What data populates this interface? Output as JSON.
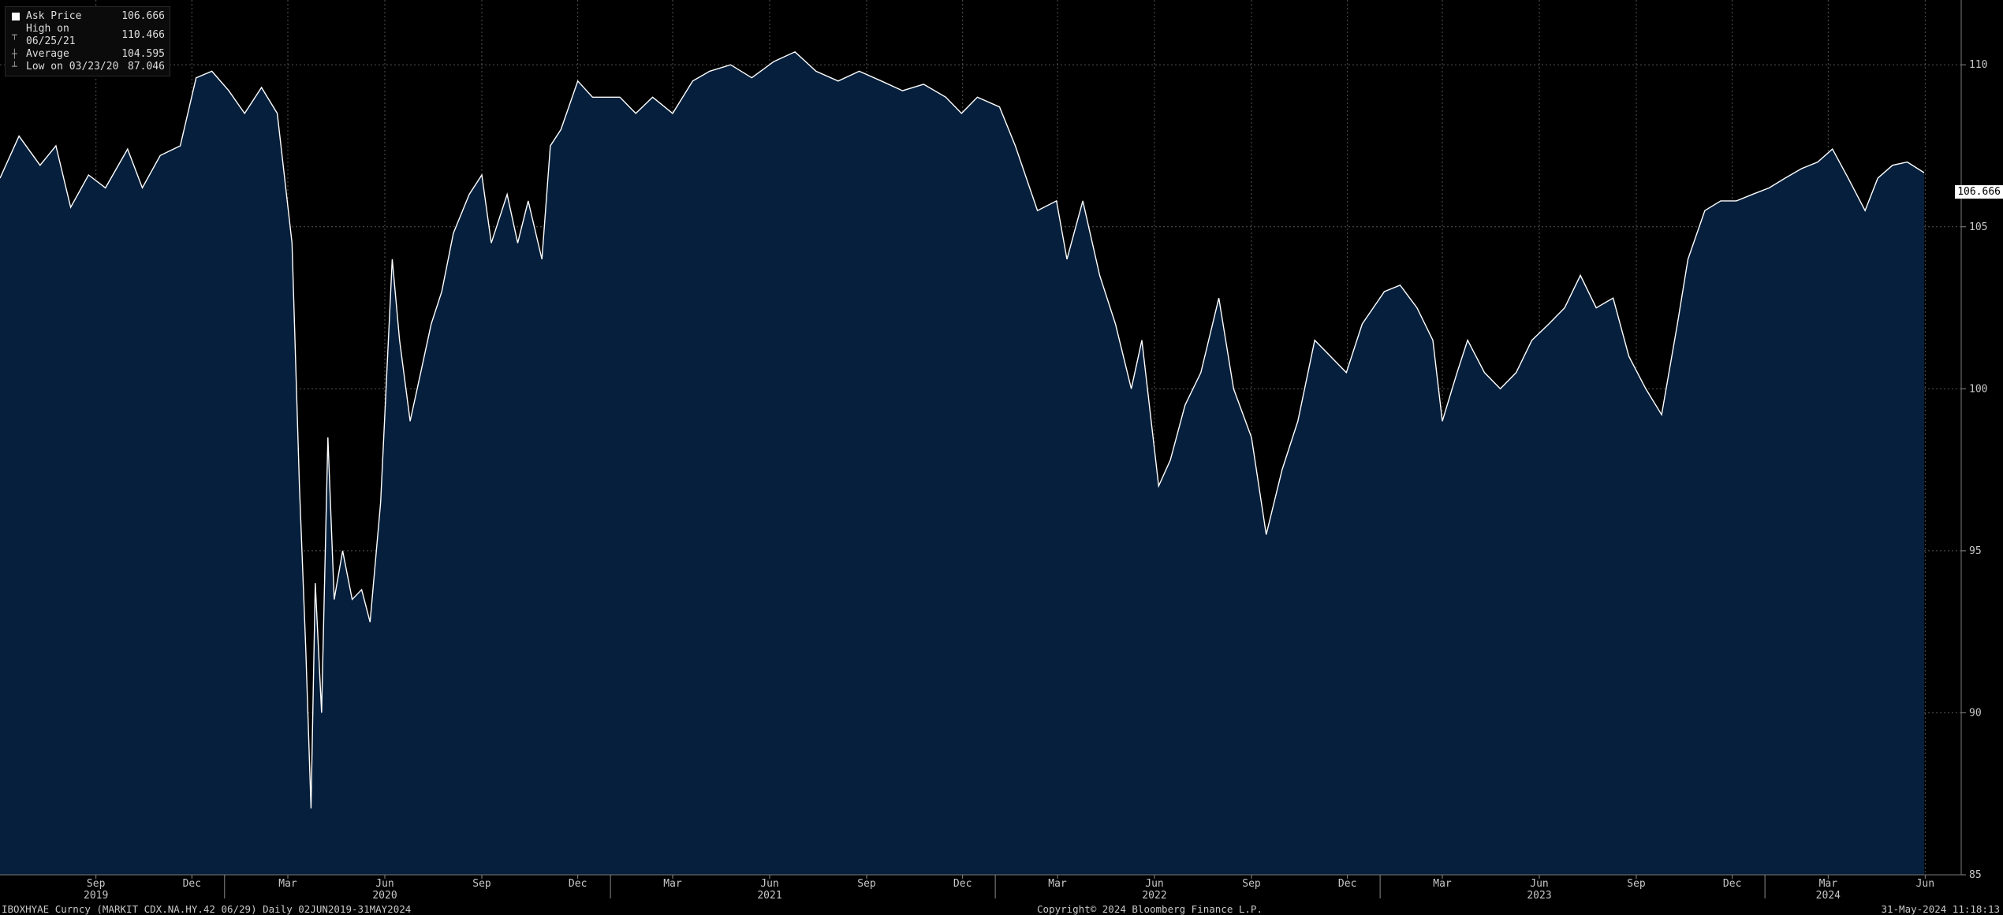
{
  "legend": {
    "ask_label": "Ask Price",
    "ask_value": "106.666",
    "high_label": "High on 06/25/21",
    "high_value": "110.466",
    "avg_label": "Average",
    "avg_value": "104.595",
    "low_label": "Low on 03/23/20",
    "low_value": "87.046"
  },
  "last_value_tag": "106.666",
  "footer": {
    "ticker": "IBOXHYAE Curncy (MARKIT CDX.NA.HY.42 06/29)  Daily 02JUN2019-31MAY2024",
    "copyright": "Copyright© 2024 Bloomberg Finance L.P.",
    "timestamp": "31-May-2024 11:18:13"
  },
  "colors": {
    "background": "#000000",
    "fill": "#051f3c",
    "line": "#ffffff",
    "grid": "#4a4a4a"
  },
  "chart_data": {
    "type": "area",
    "title": "",
    "xlabel": "",
    "ylabel": "",
    "x_range": [
      "2019-06-02",
      "2024-05-31"
    ],
    "ylim": [
      85,
      112
    ],
    "y_ticks": [
      85,
      90,
      95,
      100,
      105,
      110
    ],
    "x_month_ticks": [
      "Sep",
      "Dec",
      "Mar",
      "Jun",
      "Sep",
      "Dec",
      "Mar",
      "Jun",
      "Sep",
      "Dec",
      "Mar",
      "Jun",
      "Sep",
      "Dec",
      "Mar",
      "Jun",
      "Sep",
      "Dec",
      "Mar",
      "Jun"
    ],
    "x_month_dates": [
      "2019-09-01",
      "2019-12-01",
      "2020-03-01",
      "2020-06-01",
      "2020-09-01",
      "2020-12-01",
      "2021-03-01",
      "2021-06-01",
      "2021-09-01",
      "2021-12-01",
      "2022-03-01",
      "2022-06-01",
      "2022-09-01",
      "2022-12-01",
      "2023-03-01",
      "2023-06-01",
      "2023-09-01",
      "2023-12-01",
      "2024-03-01",
      "2024-06-01"
    ],
    "x_year_ticks": [
      "2019",
      "2020",
      "2021",
      "2022",
      "2023",
      "2024"
    ],
    "x_year_dates": [
      "2019-09-01",
      "2020-06-01",
      "2021-06-01",
      "2022-06-01",
      "2023-06-01",
      "2024-03-01"
    ],
    "grid": true,
    "series": [
      {
        "name": "Ask Price",
        "x": [
          "2019-06-02",
          "2019-06-20",
          "2019-07-10",
          "2019-07-25",
          "2019-08-08",
          "2019-08-25",
          "2019-09-10",
          "2019-10-01",
          "2019-10-15",
          "2019-11-01",
          "2019-11-20",
          "2019-12-05",
          "2019-12-20",
          "2020-01-05",
          "2020-01-20",
          "2020-02-05",
          "2020-02-20",
          "2020-03-05",
          "2020-03-12",
          "2020-03-18",
          "2020-03-23",
          "2020-03-27",
          "2020-04-02",
          "2020-04-08",
          "2020-04-14",
          "2020-04-22",
          "2020-05-01",
          "2020-05-10",
          "2020-05-18",
          "2020-05-28",
          "2020-06-08",
          "2020-06-15",
          "2020-06-25",
          "2020-07-05",
          "2020-07-15",
          "2020-07-25",
          "2020-08-05",
          "2020-08-20",
          "2020-09-01",
          "2020-09-10",
          "2020-09-25",
          "2020-10-05",
          "2020-10-15",
          "2020-10-28",
          "2020-11-05",
          "2020-11-15",
          "2020-12-01",
          "2020-12-15",
          "2021-01-10",
          "2021-01-25",
          "2021-02-10",
          "2021-03-01",
          "2021-03-20",
          "2021-04-05",
          "2021-04-25",
          "2021-05-15",
          "2021-06-05",
          "2021-06-25",
          "2021-07-15",
          "2021-08-05",
          "2021-08-25",
          "2021-09-15",
          "2021-10-05",
          "2021-10-25",
          "2021-11-15",
          "2021-11-30",
          "2021-12-15",
          "2022-01-05",
          "2022-01-20",
          "2022-02-10",
          "2022-02-28",
          "2022-03-10",
          "2022-03-25",
          "2022-04-10",
          "2022-04-25",
          "2022-05-10",
          "2022-05-20",
          "2022-06-05",
          "2022-06-16",
          "2022-06-30",
          "2022-07-15",
          "2022-08-01",
          "2022-08-15",
          "2022-09-01",
          "2022-09-15",
          "2022-09-30",
          "2022-10-15",
          "2022-10-31",
          "2022-11-15",
          "2022-11-30",
          "2022-12-15",
          "2023-01-05",
          "2023-01-20",
          "2023-02-05",
          "2023-02-20",
          "2023-03-01",
          "2023-03-15",
          "2023-03-25",
          "2023-04-10",
          "2023-04-25",
          "2023-05-10",
          "2023-05-25",
          "2023-06-10",
          "2023-06-25",
          "2023-07-10",
          "2023-07-25",
          "2023-08-10",
          "2023-08-25",
          "2023-09-10",
          "2023-09-25",
          "2023-10-10",
          "2023-10-20",
          "2023-11-05",
          "2023-11-20",
          "2023-12-05",
          "2023-12-20",
          "2024-01-05",
          "2024-01-20",
          "2024-02-05",
          "2024-02-20",
          "2024-03-05",
          "2024-03-20",
          "2024-04-05",
          "2024-04-17",
          "2024-05-01",
          "2024-05-15",
          "2024-05-31"
        ],
        "values": [
          106.5,
          107.8,
          106.9,
          107.5,
          105.6,
          106.6,
          106.2,
          107.4,
          106.2,
          107.2,
          107.5,
          109.6,
          109.8,
          109.2,
          108.5,
          109.3,
          108.5,
          104.5,
          97.0,
          92.0,
          87.05,
          94.0,
          90.0,
          98.5,
          93.5,
          95.0,
          93.5,
          93.8,
          92.8,
          96.5,
          104.0,
          101.5,
          99.0,
          100.5,
          102.0,
          103.0,
          104.8,
          106.0,
          106.6,
          104.5,
          106.0,
          104.5,
          105.8,
          104.0,
          107.5,
          108.0,
          109.5,
          109.0,
          109.0,
          108.5,
          109.0,
          108.5,
          109.5,
          109.8,
          110.0,
          109.6,
          110.1,
          110.4,
          109.8,
          109.5,
          109.8,
          109.5,
          109.2,
          109.4,
          109.0,
          108.5,
          109.0,
          108.7,
          107.5,
          105.5,
          105.8,
          104.0,
          105.8,
          103.5,
          102.0,
          100.0,
          101.5,
          97.0,
          97.8,
          99.5,
          100.5,
          102.8,
          100.0,
          98.5,
          95.5,
          97.5,
          99.0,
          101.5,
          101.0,
          100.5,
          102.0,
          103.0,
          103.2,
          102.5,
          101.5,
          99.0,
          100.5,
          101.5,
          100.5,
          100.0,
          100.5,
          101.5,
          102.0,
          102.5,
          103.5,
          102.5,
          102.8,
          101.0,
          100.0,
          99.2,
          102.0,
          104.0,
          105.5,
          105.8,
          105.8,
          106.0,
          106.2,
          106.5,
          106.8,
          107.0,
          107.4,
          106.5,
          105.5,
          106.5,
          106.9,
          107.0,
          106.67
        ]
      }
    ]
  }
}
